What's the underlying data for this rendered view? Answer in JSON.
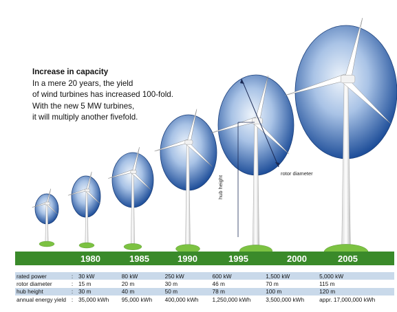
{
  "intro": {
    "heading": "Increase in capacity",
    "lines": [
      "In a mere 20 years, the yield",
      "of wind turbines has increased 100-fold.",
      "With the new 5 MW turbines,",
      "it will multiply another fivefold."
    ]
  },
  "years": [
    "1980",
    "1985",
    "1990",
    "1995",
    "2000",
    "2005"
  ],
  "labels": {
    "rotor_diameter": "rotor diameter",
    "hub_height": "hub height"
  },
  "table": {
    "rows": [
      {
        "label": "rated power",
        "values": [
          "30 kW",
          "80 kW",
          "250 kW",
          "600 kW",
          "1,500 kW",
          "5,000 kW"
        ]
      },
      {
        "label": "rotor diameter",
        "values": [
          "15 m",
          "20 m",
          "30 m",
          "46 m",
          "70 m",
          "115 m"
        ]
      },
      {
        "label": "hub height",
        "values": [
          "30 m",
          "40 m",
          "50 m",
          "78 m",
          "100 m",
          "120 m"
        ]
      },
      {
        "label": "annual energy yield",
        "values": [
          "35,000 kWh",
          "95,000 kWh",
          "400,000 kWh",
          "1,250,000 kWh",
          "3,500,000 kWh",
          "appr. 17,000,000 kWh"
        ]
      }
    ]
  },
  "colors": {
    "ground": "#3a8a2a",
    "rotor_center": "#eef4fb",
    "rotor_edge": "#1f4f9a",
    "table_shade": "#c9d9ea"
  }
}
